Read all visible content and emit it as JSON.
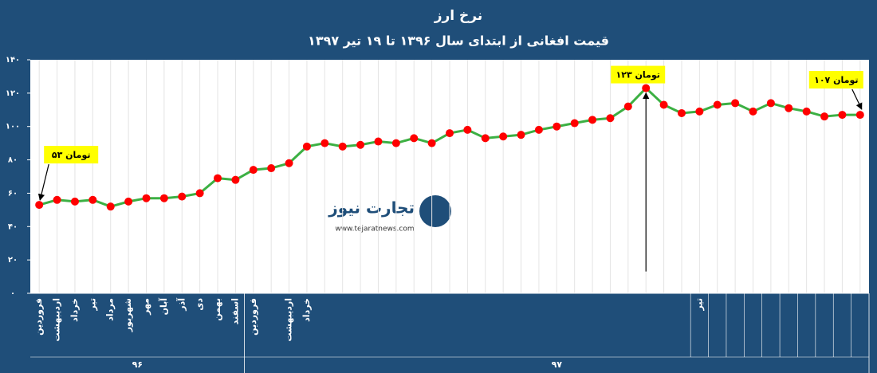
{
  "chart_data": {
    "type": "line",
    "title": "نرخ ارز",
    "subtitle": "قیمت افغانی از ابتدای سال ۱۳۹۶ تا ۱۹ تیر ۱۳۹۷",
    "categories": [
      "فروردین",
      "اردیبهشت",
      "خرداد",
      "تیر",
      "مرداد",
      "شهریور",
      "مهر",
      "آبان",
      "آذر",
      "دی",
      "بهمن",
      "اسفند",
      "فروردین",
      null,
      "اردیبهشت",
      "خرداد",
      null,
      null,
      null,
      null,
      null,
      null,
      null,
      null,
      null,
      null,
      null,
      null,
      null,
      null,
      null,
      null,
      null,
      null,
      null,
      null,
      null,
      "تیر",
      null,
      null,
      null,
      null,
      null,
      null,
      null,
      null,
      null
    ],
    "x_groups": [
      {
        "label": "۹۶",
        "span": 12
      },
      {
        "label": "۹۷",
        "span": 35
      }
    ],
    "values": [
      53,
      56,
      55,
      56,
      52,
      55,
      57,
      57,
      58,
      60,
      69,
      68,
      74,
      75,
      78,
      88,
      90,
      88,
      89,
      91,
      90,
      93,
      90,
      96,
      98,
      93,
      94,
      95,
      98,
      100,
      102,
      104,
      105,
      112,
      123,
      113,
      108,
      109,
      113,
      114,
      109,
      114,
      111,
      109,
      106,
      107,
      107
    ],
    "value_labels": [
      "۵۳ تومان",
      null,
      null,
      null,
      null,
      null,
      null,
      null,
      null,
      null,
      null,
      null,
      null,
      null,
      null,
      null,
      null,
      null,
      null,
      null,
      null,
      null,
      null,
      null,
      null,
      null,
      null,
      null,
      null,
      null,
      null,
      null,
      null,
      null,
      "۱۲۳ تومان",
      null,
      null,
      null,
      null,
      null,
      null,
      null,
      null,
      null,
      null,
      null,
      "۱۰۷ تومان"
    ],
    "color": "#3cb043",
    "marker_color": "#ff0000",
    "ylim": [
      0,
      140
    ],
    "yticks": [
      {
        "value": 0,
        "label": "۰"
      },
      {
        "value": 20,
        "label": "۲۰"
      },
      {
        "value": 40,
        "label": "۴۰"
      },
      {
        "value": 60,
        "label": "۶۰"
      },
      {
        "value": 80,
        "label": "۸۰"
      },
      {
        "value": 100,
        "label": "۱۰۰"
      },
      {
        "value": 120,
        "label": "۱۲۰"
      },
      {
        "value": 140,
        "label": "۱۴۰"
      }
    ],
    "grid": true,
    "watermark": {
      "name": "تجارت نیوز",
      "url": "www.tejaratnews.com"
    }
  }
}
